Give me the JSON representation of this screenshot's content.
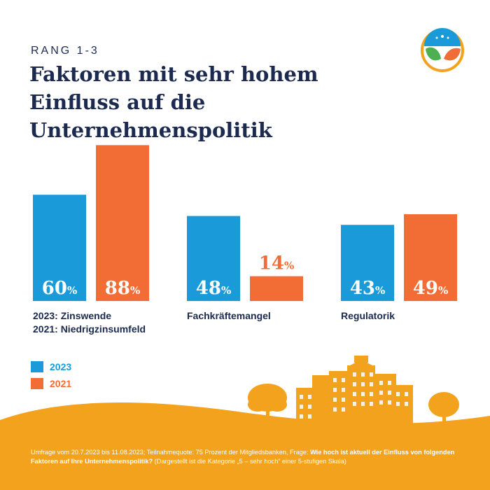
{
  "header": {
    "subtitle": "RANG 1-3",
    "title": "Faktoren mit sehr hohem Einfluss auf die Unternehmenspolitik"
  },
  "colors": {
    "c2023": "#1a9ad9",
    "c2021": "#f26c35",
    "navy": "#1b2a4e",
    "ground": "#f3a21d"
  },
  "chart_data": {
    "type": "bar",
    "categories": [
      "2023: Zinswende\n2021: Niedrigzinsumfeld",
      "Fachkräftemangel",
      "Regulatorik"
    ],
    "series": [
      {
        "name": "2023",
        "values": [
          60,
          48,
          43
        ]
      },
      {
        "name": "2021",
        "values": [
          88,
          14,
          49
        ]
      }
    ],
    "unit": "%",
    "legend": "bottom-left",
    "grid": false
  },
  "legend": {
    "items": [
      "2023",
      "2021"
    ]
  },
  "footnote": {
    "pre": "Umfrage vom 20.7.2023 bis 11.08.2023; Teilnahmequote: 75 Prozent der Mitgliedsbanken, Frage: ",
    "question": "Wie hoch ist aktuell der Einfluss von folgenden Faktoren auf Ihre Unternehmenspolitik?",
    "post": " (Dargestellt ist die Kategorie „5 – sehr hoch“ einer 5-stufigen Skala)"
  }
}
